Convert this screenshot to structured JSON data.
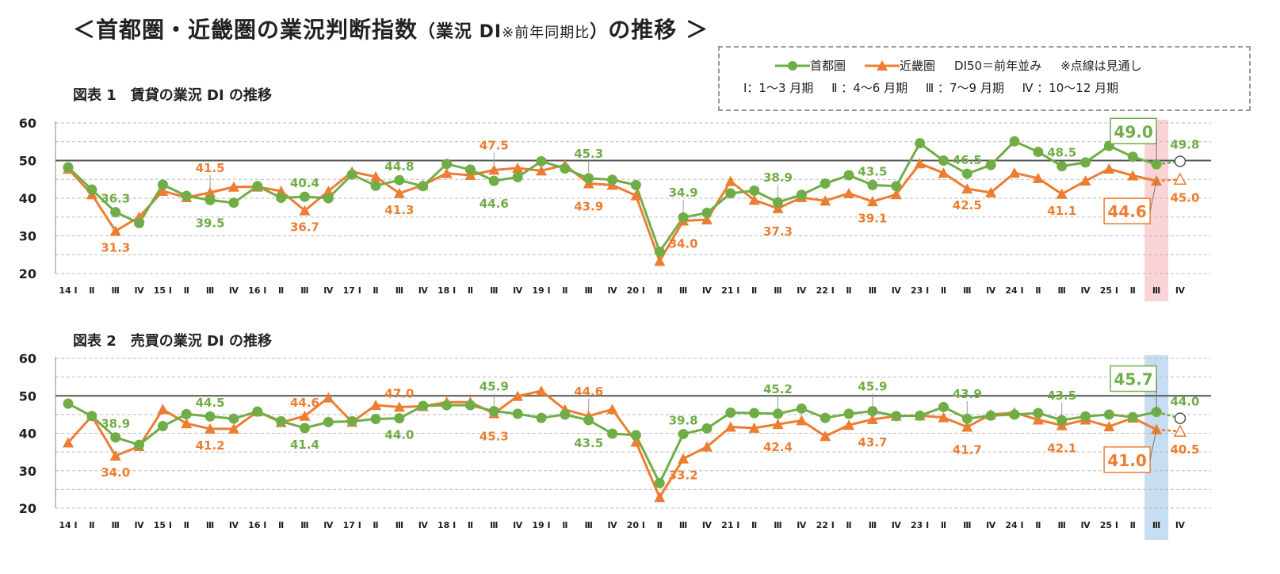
{
  "header": {
    "title_main": "＜首都圏・近畿圏の業況判断指数",
    "title_paren_open": "（業況 DI",
    "title_note": "※前年同期比",
    "title_paren_close": "）",
    "title_end": "の推移 ＞"
  },
  "legend": {
    "series1": "首都圏",
    "series2": "近畿圏",
    "di50": "DI50＝前年並み",
    "dotted_note": "※点線は見通し",
    "q1": "Ⅰ：1～3 月期",
    "q2": "Ⅱ ：4～6 月期",
    "q3": "Ⅲ ：7～9 月期",
    "q4": "Ⅳ ：10～12 月期"
  },
  "colors": {
    "shutoken": "#70AD47",
    "kinki": "#ED7D31",
    "highlight1": "#F8CBCE",
    "highlight2": "#BDD7EE"
  },
  "x_labels": [
    "14 Ⅰ",
    "Ⅱ",
    "Ⅲ",
    "Ⅳ",
    "15 Ⅰ",
    "Ⅱ",
    "Ⅲ",
    "Ⅳ",
    "16 Ⅰ",
    "Ⅱ",
    "Ⅲ",
    "Ⅳ",
    "17 Ⅰ",
    "Ⅱ",
    "Ⅲ",
    "Ⅳ",
    "18 Ⅰ",
    "Ⅱ",
    "Ⅲ",
    "Ⅳ",
    "19 Ⅰ",
    "Ⅱ",
    "Ⅲ",
    "Ⅳ",
    "20 Ⅰ",
    "Ⅱ",
    "Ⅲ",
    "Ⅳ",
    "21 Ⅰ",
    "Ⅱ",
    "Ⅲ",
    "Ⅳ",
    "22 Ⅰ",
    "Ⅱ",
    "Ⅲ",
    "Ⅳ",
    "23 Ⅰ",
    "Ⅱ",
    "Ⅲ",
    "Ⅳ",
    "24 Ⅰ",
    "Ⅱ",
    "Ⅲ",
    "Ⅳ",
    "25 Ⅰ",
    "Ⅱ",
    "Ⅲ",
    "Ⅳ"
  ],
  "chart_data": [
    {
      "type": "line",
      "title": "図表 1　賃貸の業況 DI の推移",
      "ylim": [
        20,
        60
      ],
      "yticks": [
        20,
        30,
        40,
        50,
        60
      ],
      "reference_line": 50,
      "highlight_index": 46,
      "series": [
        {
          "name": "首都圏",
          "values": [
            48.2,
            42.3,
            36.3,
            33.4,
            43.6,
            40.6,
            39.5,
            38.8,
            43.2,
            40.1,
            40.4,
            40.0,
            46.3,
            43.3,
            44.8,
            43.2,
            49.1,
            47.6,
            44.6,
            45.6,
            49.8,
            47.9,
            45.3,
            44.9,
            43.5,
            25.8,
            34.9,
            36.1,
            41.3,
            42.0,
            38.9,
            40.9,
            43.9,
            46.1,
            43.5,
            43.2,
            54.6,
            50.0,
            46.5,
            48.8,
            55.1,
            52.3,
            48.5,
            49.5,
            53.9,
            51.0,
            49.0,
            49.8
          ]
        },
        {
          "name": "近畿圏",
          "values": [
            47.8,
            41.0,
            31.3,
            35.0,
            41.9,
            40.2,
            41.5,
            43.0,
            43.0,
            41.9,
            36.7,
            41.9,
            47.0,
            45.7,
            41.3,
            43.5,
            46.6,
            46.1,
            47.5,
            48.0,
            47.3,
            48.8,
            43.9,
            43.5,
            40.7,
            23.3,
            34.0,
            34.3,
            44.5,
            39.5,
            37.3,
            40.2,
            39.3,
            41.3,
            39.1,
            41.0,
            49.2,
            46.7,
            42.5,
            41.5,
            46.7,
            45.3,
            41.1,
            44.6,
            47.8,
            46.0,
            44.6,
            45.0
          ]
        }
      ],
      "data_labels": {
        "首都圏": {
          "2": "36.3",
          "6": "39.5",
          "10": "40.4",
          "14": "44.8",
          "18": "44.6",
          "22": "45.3",
          "26": "34.9",
          "30": "38.9",
          "34": "43.5",
          "38": "46.5",
          "42": "48.5",
          "46": "49.0",
          "47": "49.8"
        },
        "近畿圏": {
          "2": "31.3",
          "6": "41.5",
          "10": "36.7",
          "14": "41.3",
          "18": "47.5",
          "22": "43.9",
          "26": "34.0",
          "30": "37.3",
          "34": "39.1",
          "38": "42.5",
          "42": "41.1",
          "46": "44.6",
          "47": "45.0"
        }
      }
    },
    {
      "type": "line",
      "title": "図表 2　売買の業況 DI の推移",
      "ylim": [
        20,
        60
      ],
      "yticks": [
        20,
        30,
        40,
        50,
        60
      ],
      "reference_line": 50,
      "highlight_index": 46,
      "series": [
        {
          "name": "首都圏",
          "values": [
            47.9,
            44.6,
            38.9,
            36.9,
            41.9,
            45.1,
            44.5,
            43.9,
            45.8,
            43.2,
            41.4,
            43.0,
            43.2,
            43.8,
            44.0,
            47.3,
            47.5,
            47.5,
            45.9,
            45.2,
            44.1,
            45.0,
            43.5,
            39.9,
            39.5,
            26.7,
            39.8,
            41.3,
            45.5,
            45.4,
            45.2,
            46.6,
            44.1,
            45.2,
            45.9,
            44.6,
            44.7,
            47.0,
            43.9,
            44.7,
            45.0,
            45.4,
            43.5,
            44.5,
            45.0,
            44.3,
            45.7,
            44.0
          ]
        },
        {
          "name": "近畿圏",
          "values": [
            37.5,
            44.6,
            34.0,
            36.5,
            46.4,
            42.6,
            41.2,
            41.2,
            45.8,
            42.9,
            44.6,
            49.5,
            43.0,
            47.5,
            47.0,
            47.2,
            48.3,
            48.3,
            45.3,
            49.9,
            51.3,
            46.3,
            44.6,
            46.4,
            37.7,
            22.9,
            33.2,
            36.4,
            41.7,
            41.4,
            42.4,
            43.4,
            39.2,
            42.2,
            43.7,
            44.6,
            44.7,
            44.2,
            41.7,
            45.0,
            45.5,
            43.6,
            42.1,
            43.6,
            41.8,
            44.1,
            41.0,
            40.5
          ]
        }
      ],
      "data_labels": {
        "首都圏": {
          "2": "38.9",
          "6": "44.5",
          "10": "41.4",
          "14": "44.0",
          "18": "45.9",
          "22": "43.5",
          "26": "39.8",
          "30": "45.2",
          "34": "45.9",
          "38": "43.9",
          "42": "43.5",
          "46": "45.7",
          "47": "44.0"
        },
        "近畿圏": {
          "2": "34.0",
          "6": "41.2",
          "10": "44.6",
          "14": "47.0",
          "18": "45.3",
          "22": "44.6",
          "26": "33.2",
          "30": "42.4",
          "34": "43.7",
          "38": "41.7",
          "42": "42.1",
          "46": "41.0",
          "47": "40.5"
        }
      }
    }
  ]
}
